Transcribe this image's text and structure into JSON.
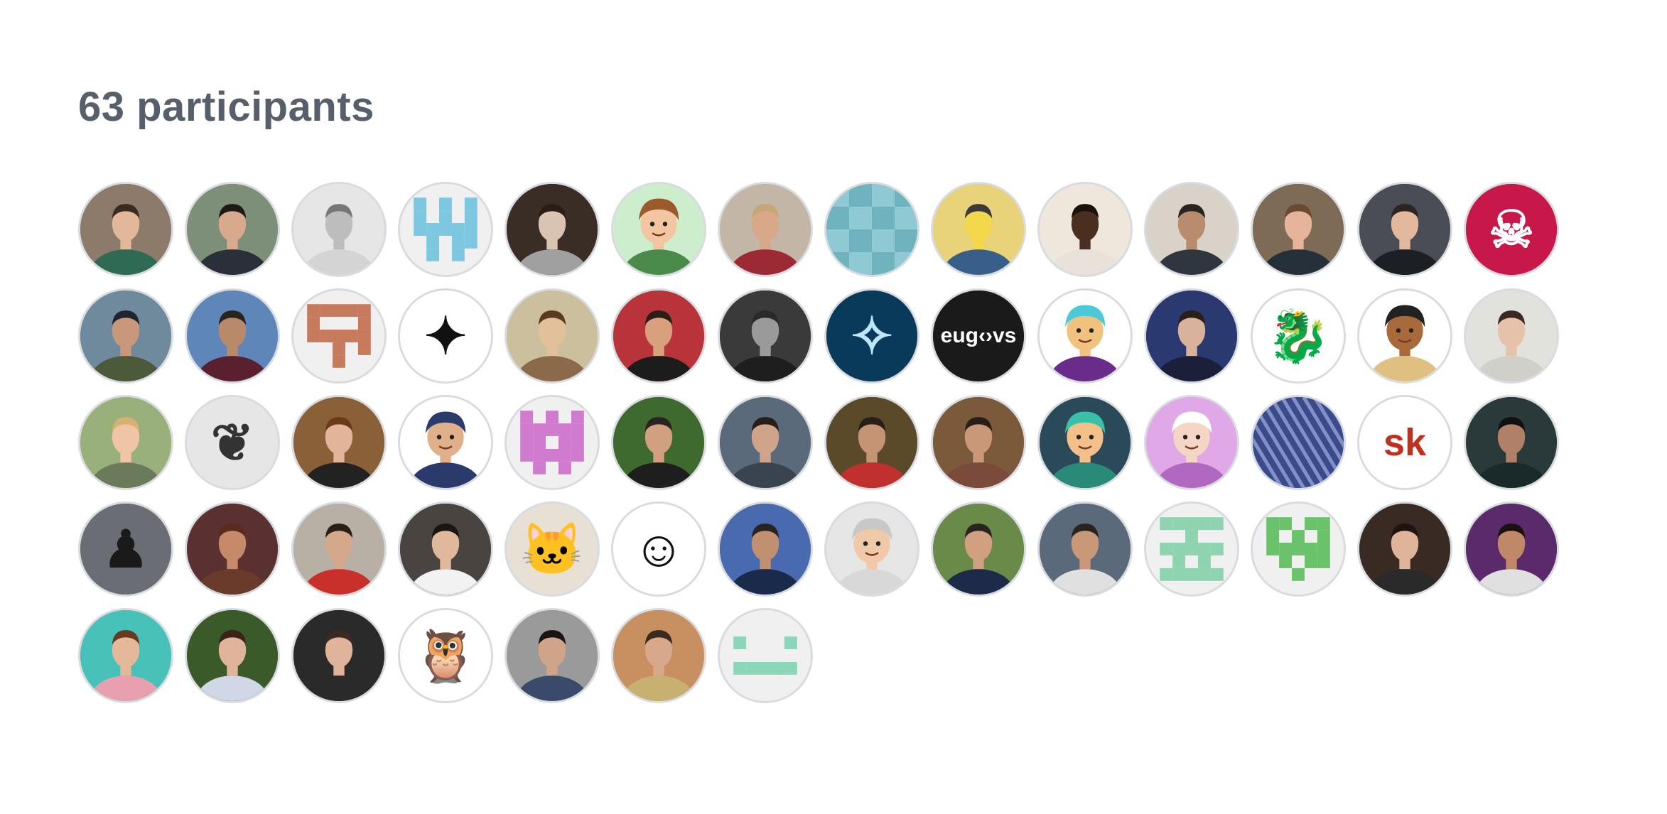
{
  "participants": {
    "title": "63 participants",
    "avatars": [
      {
        "kind": "photo",
        "bg": "#8c7b6a",
        "face": "#e2b79a",
        "hair": "#3a2b20",
        "shirt": "#2f6a55"
      },
      {
        "kind": "photo",
        "bg": "#7d8f78",
        "face": "#d8a98d",
        "hair": "#1f1a16",
        "shirt": "#2b2f3a"
      },
      {
        "kind": "photo",
        "bg": "#e6e6e6",
        "face": "#bdbdbd",
        "hair": "#777777",
        "shirt": "#d4d4d4"
      },
      {
        "kind": "identicon",
        "bg": "#f0f0f0",
        "fg": "#7ec7e0",
        "pattern": "1010110101111110101101010"
      },
      {
        "kind": "photo",
        "bg": "#3a2d26",
        "face": "#d9c4b3",
        "hair": "#2a1d16",
        "shirt": "#a0a0a0"
      },
      {
        "kind": "memoji",
        "bg": "#cdeecc",
        "face": "#f2c6a0",
        "hair": "#9a5a2a",
        "shirt": "#4a8a4a"
      },
      {
        "kind": "photo",
        "bg": "#c4b6a6",
        "face": "#d9a889",
        "hair": "#c6a675",
        "shirt": "#9c2a35"
      },
      {
        "kind": "blocks",
        "bg": "#8fc9d4",
        "fg": "#6fb3bf"
      },
      {
        "kind": "photo",
        "bg": "#e8d27a",
        "face": "#f2d84a",
        "hair": "#3b3b3b",
        "shirt": "#3a5e8a"
      },
      {
        "kind": "photo",
        "bg": "#efe6dc",
        "face": "#4a2e20",
        "hair": "#1a120c",
        "shirt": "#e8e2da"
      },
      {
        "kind": "photo",
        "bg": "#d8d2c8",
        "face": "#b88c6c",
        "hair": "#2a2420",
        "shirt": "#2f3640"
      },
      {
        "kind": "photo",
        "bg": "#7d6b56",
        "face": "#e6b49a",
        "hair": "#6b4a32",
        "shirt": "#26303a"
      },
      {
        "kind": "photo",
        "bg": "#4a4d55",
        "face": "#e2b89e",
        "hair": "#2a2520",
        "shirt": "#1c1f24"
      },
      {
        "kind": "glyph",
        "bg": "#c8184a",
        "fg": "#ffffff",
        "glyph": "☠"
      },
      {
        "kind": "photo",
        "bg": "#6f8a9c",
        "face": "#c9987a",
        "hair": "#1c2530",
        "shirt": "#4c5a3a"
      },
      {
        "kind": "photo",
        "bg": "#5e86b8",
        "face": "#b98a6a",
        "hair": "#2a2420",
        "shirt": "#5a2030"
      },
      {
        "kind": "identicon",
        "bg": "#f0f0f0",
        "fg": "#c87a5c",
        "pattern": "1111110001111110010100100"
      },
      {
        "kind": "glyph",
        "bg": "#ffffff",
        "fg": "#111111",
        "glyph": "✦"
      },
      {
        "kind": "photo",
        "bg": "#cbbf9d",
        "face": "#e2c09a",
        "hair": "#5a3a22",
        "shirt": "#8a6a4a"
      },
      {
        "kind": "photo",
        "bg": "#b8333a",
        "face": "#d8a07c",
        "hair": "#2a1f18",
        "shirt": "#1c1c1c"
      },
      {
        "kind": "photo",
        "bg": "#3a3a3a",
        "face": "#9a9a9a",
        "hair": "#2a2a2a",
        "shirt": "#1e1e1e"
      },
      {
        "kind": "glyph",
        "bg": "#0a3a5a",
        "fg": "#bfe6ff",
        "glyph": "✧"
      },
      {
        "kind": "text",
        "bg": "#1a1a1a",
        "fg": "#ffffff",
        "label": "eug‹›vs"
      },
      {
        "kind": "memoji",
        "bg": "#ffffff",
        "face": "#f1c27d",
        "hair": "#4cc9d9",
        "shirt": "#6a2c8a"
      },
      {
        "kind": "photo",
        "bg": "#2a3a70",
        "face": "#d8b29a",
        "hair": "#2a1f18",
        "shirt": "#1a1f3a"
      },
      {
        "kind": "glyph",
        "bg": "#ffffff",
        "fg": "#d9332a",
        "glyph": "🐉"
      },
      {
        "kind": "memoji",
        "bg": "#ffffff",
        "face": "#a86a3a",
        "hair": "#222222",
        "shirt": "#e0c080"
      },
      {
        "kind": "photo",
        "bg": "#e2e2dc",
        "face": "#e6c2aa",
        "hair": "#3a2a22",
        "shirt": "#d0cfc8"
      },
      {
        "kind": "photo",
        "bg": "#9ab07a",
        "face": "#f0c4a6",
        "hair": "#d8b070",
        "shirt": "#6a7a5a"
      },
      {
        "kind": "glyph",
        "bg": "#e6e6e6",
        "fg": "#333333",
        "glyph": "❦"
      },
      {
        "kind": "photo",
        "bg": "#8a6038",
        "face": "#e2b49a",
        "hair": "#6a3a1a",
        "shirt": "#222222"
      },
      {
        "kind": "memoji",
        "bg": "#ffffff",
        "face": "#e0b08a",
        "hair": "#2a3a6a",
        "shirt": "#2a3a6a"
      },
      {
        "kind": "identicon",
        "bg": "#f0f0f0",
        "fg": "#d07ad0",
        "pattern": "1010111111110111111101010"
      },
      {
        "kind": "photo",
        "bg": "#3e6a30",
        "face": "#d0a080",
        "hair": "#2a2420",
        "shirt": "#1e1e1e"
      },
      {
        "kind": "photo",
        "bg": "#5a6a7a",
        "face": "#d0a48a",
        "hair": "#2a1f18",
        "shirt": "#3a4450"
      },
      {
        "kind": "photo",
        "bg": "#5a4a2a",
        "face": "#c49474",
        "hair": "#2a1f18",
        "shirt": "#c0302e"
      },
      {
        "kind": "photo",
        "bg": "#7a5a3a",
        "face": "#c89878",
        "hair": "#2a1f18",
        "shirt": "#7a4a3a"
      },
      {
        "kind": "memoji",
        "bg": "#2a4a5a",
        "face": "#f2c088",
        "hair": "#3ac0a8",
        "shirt": "#2a8a7a"
      },
      {
        "kind": "memoji",
        "bg": "#e0a8e6",
        "face": "#f4d6c4",
        "hair": "#ffffff",
        "shirt": "#b068c0"
      },
      {
        "kind": "stripes",
        "bg": "#3a4a8a",
        "fg": "#a0b0e0"
      },
      {
        "kind": "text",
        "bg": "#ffffff",
        "fg": "#c0301e",
        "label": "sk"
      },
      {
        "kind": "photo",
        "bg": "#2a3a3a",
        "face": "#b08068",
        "hair": "#111111",
        "shirt": "#1a2a2a"
      },
      {
        "kind": "glyph",
        "bg": "#6a6e74",
        "fg": "#1a1a1a",
        "glyph": "♟"
      },
      {
        "kind": "photo",
        "bg": "#5a3030",
        "face": "#c68a6a",
        "hair": "#5a2a1a",
        "shirt": "#6a3a2a"
      },
      {
        "kind": "photo",
        "bg": "#b8b0a4",
        "face": "#d4a88a",
        "hair": "#2a1f18",
        "shirt": "#c8302c"
      },
      {
        "kind": "photo",
        "bg": "#4a4440",
        "face": "#e0b89c",
        "hair": "#1a1614",
        "shirt": "#f2f2f2"
      },
      {
        "kind": "glyph",
        "bg": "#e8e0d4",
        "fg": "#6a5a4a",
        "glyph": "🐱"
      },
      {
        "kind": "glyph",
        "bg": "#ffffff",
        "fg": "#111111",
        "glyph": "☺"
      },
      {
        "kind": "photo",
        "bg": "#4a6ab0",
        "face": "#c09070",
        "hair": "#2a2420",
        "shirt": "#1a2a4a"
      },
      {
        "kind": "memoji",
        "bg": "#e6e6e6",
        "face": "#f0caa8",
        "hair": "#c8c8c8",
        "shirt": "#d8d8d8"
      },
      {
        "kind": "photo",
        "bg": "#6a8a4a",
        "face": "#d0a080",
        "hair": "#2a2420",
        "shirt": "#1e2a4a"
      },
      {
        "kind": "photo",
        "bg": "#5a6a7a",
        "face": "#c89878",
        "hair": "#2a2420",
        "shirt": "#e0e0e0"
      },
      {
        "kind": "identicon",
        "bg": "#f0f0f0",
        "fg": "#8fd4b0",
        "pattern": "1111100100111110101011111"
      },
      {
        "kind": "identicon",
        "bg": "#f0f0f0",
        "fg": "#6ac26a",
        "pattern": "1101110101111110101100100"
      },
      {
        "kind": "photo",
        "bg": "#3a2a24",
        "face": "#e0b49a",
        "hair": "#1e1410",
        "shirt": "#2a2a2a"
      },
      {
        "kind": "photo",
        "bg": "#5a2a6a",
        "face": "#c08868",
        "hair": "#1a1210",
        "shirt": "#e0e0e0"
      },
      {
        "kind": "photo",
        "bg": "#48c2b8",
        "face": "#e6b89a",
        "hair": "#6a3a1e",
        "shirt": "#e8a0b0"
      },
      {
        "kind": "photo",
        "bg": "#3a5a2a",
        "face": "#e0b49a",
        "hair": "#3a2418",
        "shirt": "#d0d8e8"
      },
      {
        "kind": "photo",
        "bg": "#2a2a2a",
        "face": "#e0b49a",
        "hair": "#3a2a20",
        "shirt": "#2a2a2a"
      },
      {
        "kind": "glyph",
        "bg": "#ffffff",
        "fg": "#3a5aa8",
        "glyph": "🦉"
      },
      {
        "kind": "photo",
        "bg": "#9a9a9a",
        "face": "#d0a488",
        "hair": "#1a1412",
        "shirt": "#3a4a6a"
      },
      {
        "kind": "photo",
        "bg": "#c89060",
        "face": "#d8a88a",
        "hair": "#3a2a20",
        "shirt": "#c8b070"
      },
      {
        "kind": "identicon",
        "bg": "#f0f0f0",
        "fg": "#8ad6b8",
        "pattern": "0000010001000001111100000"
      }
    ]
  }
}
